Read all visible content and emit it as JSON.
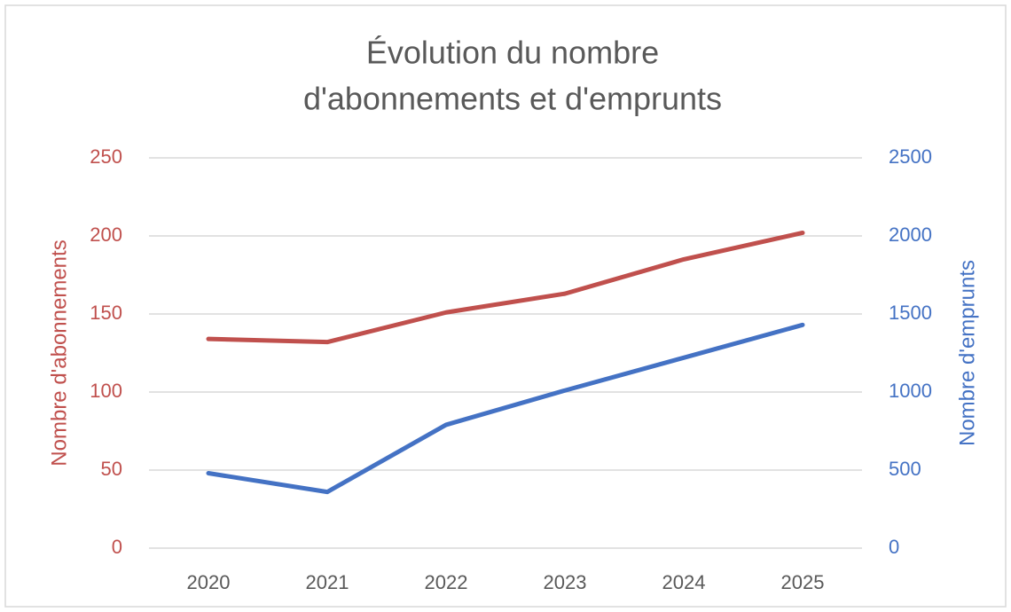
{
  "chart_data": {
    "type": "line",
    "title": [
      "Évolution du nombre",
      "d'abonnements et d'emprunts"
    ],
    "y_label": "Nombre d'abonnements",
    "y2_label": "Nombre d'emprunts",
    "categories": [
      "2020",
      "2021",
      "2022",
      "2023",
      "2024",
      "2025"
    ],
    "series": [
      {
        "name": "Nombre d'abonnements",
        "color": "#c0504d",
        "values": [
          134,
          132,
          151,
          163,
          185,
          202
        ]
      },
      {
        "name": "Nombre d'emprunts",
        "color": "#4472c4",
        "axis": "y2",
        "values": [
          480,
          360,
          790,
          1010,
          1220,
          1430
        ]
      }
    ],
    "ylim": [
      0,
      250
    ],
    "yticks": [
      0,
      50,
      100,
      150,
      200,
      250
    ],
    "y2lim": [
      0,
      2500
    ],
    "y2ticks": [
      0,
      500,
      1000,
      1500,
      2000,
      2500
    ],
    "grid": true
  }
}
